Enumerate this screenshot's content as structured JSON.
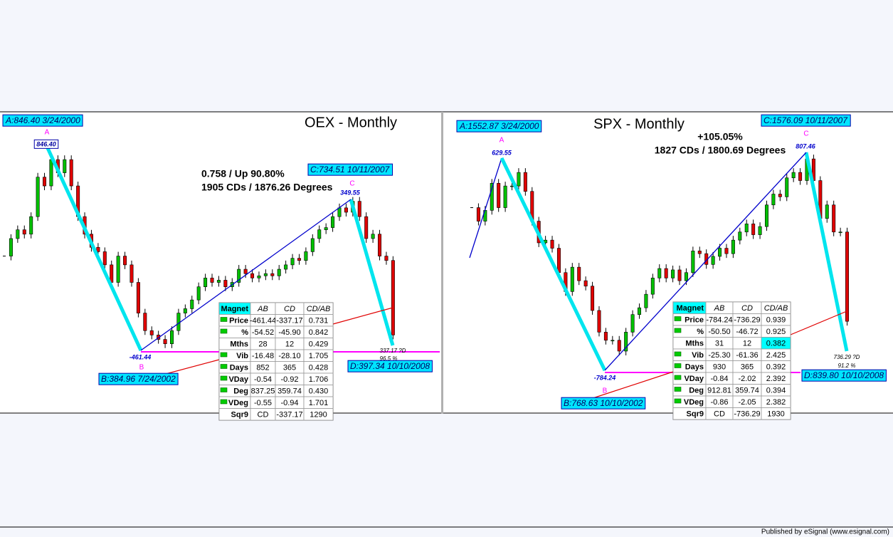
{
  "chart_data": [
    {
      "type": "candlestick",
      "title": "OEX - Monthly",
      "ylim": [
        242,
        929
      ],
      "up_color": "#00c000",
      "down_color": "#e00000",
      "values": [
        600,
        640,
        660,
        650,
        690,
        780,
        760,
        820,
        790,
        820,
        760,
        690,
        650,
        620,
        610,
        580,
        540,
        600,
        580,
        540,
        470,
        430,
        420,
        410,
        400,
        430,
        470,
        480,
        500,
        530,
        550,
        540,
        545,
        530,
        540,
        570,
        560,
        550,
        555,
        560,
        555,
        570,
        580,
        595,
        590,
        610,
        640,
        660,
        665,
        690,
        710,
        700,
        725,
        690,
        640,
        650,
        600,
        590,
        420
      ],
      "annotations": {
        "a_box": "A:846.40 3/24/2000",
        "a_letter": "A",
        "a_value": "846.40",
        "stats_1": "0.758 / Up 90.80%",
        "stats_2": "1905 CDs / 1876.26 Degrees",
        "c_box": "C:734.51 10/11/2007",
        "c_letter": "C",
        "c_value": "349.55",
        "b_value": "-461.44",
        "b_letter": "B",
        "b_box": "B:384.96 7/24/2002",
        "d_value": "337.17 ?D",
        "d_pct": "96.5 %",
        "d_box": "D:397.34 10/10/2008"
      },
      "table": {
        "header": [
          "Magnet",
          "AB",
          "CD",
          "CD/AB"
        ],
        "rows": [
          [
            "Price",
            "-461.44",
            "-337.17",
            "0.731"
          ],
          [
            "%",
            "-54.52",
            "-45.90",
            "0.842"
          ],
          [
            "Mths",
            "28",
            "12",
            "0.429"
          ],
          [
            "Vib",
            "-16.48",
            "-28.10",
            "1.705"
          ],
          [
            "Days",
            "852",
            "365",
            "0.428"
          ],
          [
            "VDay",
            "-0.54",
            "-0.92",
            "1.706"
          ],
          [
            "Deg",
            "837.25",
            "359.74",
            "0.430"
          ],
          [
            "VDeg",
            "-0.55",
            "-0.94",
            "1.701"
          ],
          [
            "Sqr9",
            "CD",
            "-337.17",
            "1290"
          ]
        ]
      }
    },
    {
      "type": "candlestick",
      "title": "SPX - Monthly",
      "ylim": [
        611,
        1724
      ],
      "up_color": "#00c000",
      "down_color": "#e00000",
      "values": [
        1370,
        1320,
        1360,
        1460,
        1370,
        1450,
        1450,
        1500,
        1430,
        1320,
        1240,
        1250,
        1220,
        1130,
        1060,
        1150,
        1100,
        1080,
        990,
        910,
        880,
        880,
        840,
        910,
        975,
        1000,
        1050,
        1110,
        1145,
        1110,
        1140,
        1100,
        1130,
        1210,
        1200,
        1160,
        1190,
        1220,
        1200,
        1250,
        1280,
        1310,
        1270,
        1300,
        1380,
        1420,
        1410,
        1480,
        1500,
        1470,
        1550,
        1470,
        1330,
        1380,
        1280,
        1280,
        950
      ],
      "annotations": {
        "a_box": "A:1552.87 3/24/2000",
        "a_letter": "A",
        "a_value": "629.55",
        "c_box": "C:1576.09 10/11/2007",
        "stats_1": "+105.05%",
        "stats_2": "1827 CDs / 1800.69 Degrees",
        "c_letter": "C",
        "c_value": "807.46",
        "b_value": "-784.24",
        "b_letter": "B",
        "b_box": "B:768.63 10/10/2002",
        "d_value": "736.29 ?D",
        "d_pct": "91.2 %",
        "d_box": "D:839.80 10/10/2008"
      },
      "table": {
        "header": [
          "Magnet",
          "AB",
          "CD",
          "CD/AB"
        ],
        "rows": [
          [
            "Price",
            "-784.24",
            "-736.29",
            "0.939"
          ],
          [
            "%",
            "-50.50",
            "-46.72",
            "0.925"
          ],
          [
            "Mths",
            "31",
            "12",
            "0.382"
          ],
          [
            "Vib",
            "-25.30",
            "-61.36",
            "2.425"
          ],
          [
            "Days",
            "930",
            "365",
            "0.392"
          ],
          [
            "VDay",
            "-0.84",
            "-2.02",
            "2.392"
          ],
          [
            "Deg",
            "912.81",
            "359.74",
            "0.394"
          ],
          [
            "VDeg",
            "-0.86",
            "-2.05",
            "2.382"
          ],
          [
            "Sqr9",
            "CD",
            "-736.29",
            "1930"
          ]
        ]
      }
    }
  ],
  "footer": "Published by eSignal (www.esignal.com)"
}
